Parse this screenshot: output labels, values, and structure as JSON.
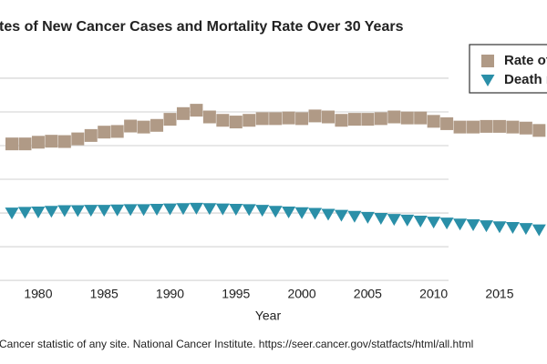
{
  "chart_data": {
    "type": "scatter",
    "title": "tes of New Cancer Cases and Mortality Rate Over 30 Years",
    "x_label": "Year",
    "source": "Cancer statistic of any site. National Cancer Institute. https://seer.cancer.gov/statfacts/html/all.html",
    "x": [
      1978,
      1979,
      1980,
      1981,
      1982,
      1983,
      1984,
      1985,
      1986,
      1987,
      1988,
      1989,
      1990,
      1991,
      1992,
      1993,
      1994,
      1995,
      1996,
      1997,
      1998,
      1999,
      2000,
      2001,
      2002,
      2003,
      2004,
      2005,
      2006,
      2007,
      2008,
      2009,
      2010,
      2011,
      2012,
      2013,
      2014,
      2015,
      2016,
      2017,
      2018
    ],
    "series": [
      {
        "name": "Rate of",
        "color": "#b09a86",
        "marker": "square",
        "values": [
          405,
          405,
          410,
          413,
          412,
          420,
          430,
          440,
          442,
          458,
          455,
          460,
          478,
          495,
          505,
          485,
          475,
          470,
          475,
          480,
          480,
          482,
          480,
          488,
          485,
          475,
          478,
          478,
          480,
          485,
          482,
          482,
          472,
          465,
          455,
          455,
          457,
          457,
          455,
          452,
          445
        ]
      },
      {
        "name": "Death r",
        "color": "#2a8fa8",
        "marker": "triangle-down",
        "values": [
          200,
          202,
          203,
          205,
          207,
          207,
          208,
          208,
          209,
          210,
          210,
          211,
          212,
          213,
          214,
          213,
          212,
          211,
          210,
          208,
          205,
          203,
          201,
          199,
          196,
          193,
          190,
          187,
          184,
          181,
          179,
          176,
          173,
          170,
          167,
          165,
          162,
          159,
          157,
          154,
          150
        ]
      }
    ],
    "xlim": [
      1977.1,
      2018.6
    ],
    "xticks": [
      1980,
      1985,
      1990,
      1995,
      2000,
      2005,
      2010,
      2015
    ],
    "ylim": [
      -32,
      697
    ],
    "yticks": [
      0,
      100,
      200,
      300,
      400,
      500,
      600
    ],
    "grid": true,
    "legend": "upper right"
  }
}
